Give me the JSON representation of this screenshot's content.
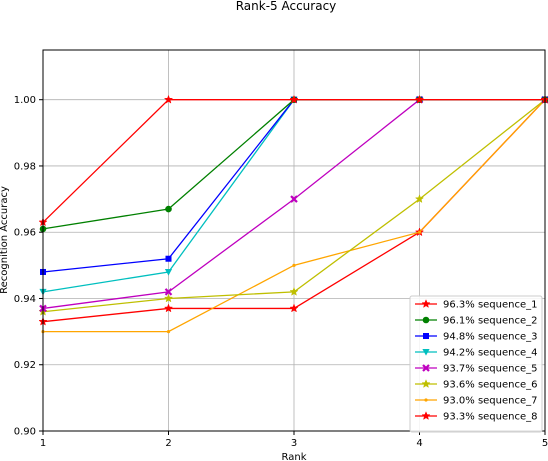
{
  "chart_data": {
    "type": "line",
    "title": "Rank-5 Accuracy",
    "xlabel": "Rank",
    "ylabel": "Recognition Accuracy",
    "xlim": [
      1,
      5
    ],
    "ylim": [
      0.9,
      1.015
    ],
    "xticks": [
      1,
      2,
      3,
      4,
      5
    ],
    "xtick_labels": [
      "1",
      "2",
      "3",
      "4",
      "5"
    ],
    "yticks": [
      0.9,
      0.92,
      0.94,
      0.96,
      0.98,
      1.0
    ],
    "ytick_labels": [
      "0.90",
      "0.92",
      "0.94",
      "0.96",
      "0.98",
      "1.00"
    ],
    "grid": true,
    "legend_position": "lower-right",
    "x": [
      1,
      2,
      3,
      4,
      5
    ],
    "series": [
      {
        "name": "96.3% sequence_1",
        "color": "#ff0000",
        "marker": "star",
        "values": [
          0.963,
          1.0,
          1.0,
          1.0,
          1.0
        ]
      },
      {
        "name": "96.1% sequence_2",
        "color": "#008000",
        "marker": "circle",
        "values": [
          0.961,
          0.967,
          1.0,
          1.0,
          1.0
        ]
      },
      {
        "name": "94.8% sequence_3",
        "color": "#0000ff",
        "marker": "square",
        "values": [
          0.948,
          0.952,
          1.0,
          1.0,
          1.0
        ]
      },
      {
        "name": "94.2% sequence_4",
        "color": "#00bfbf",
        "marker": "triangle-down",
        "values": [
          0.942,
          0.948,
          1.0,
          1.0,
          1.0
        ]
      },
      {
        "name": "93.7% sequence_5",
        "color": "#bf00bf",
        "marker": "x",
        "values": [
          0.937,
          0.942,
          0.97,
          1.0,
          1.0
        ]
      },
      {
        "name": "93.6% sequence_6",
        "color": "#bfbf00",
        "marker": "star",
        "values": [
          0.936,
          0.94,
          0.942,
          0.97,
          1.0
        ]
      },
      {
        "name": "93.0% sequence_7",
        "color": "#ffa500",
        "marker": "point",
        "values": [
          0.93,
          0.93,
          0.95,
          0.96,
          1.0
        ]
      },
      {
        "name": "93.3% sequence_8",
        "color": "#ff0000",
        "marker": "star",
        "values": [
          0.933,
          0.937,
          0.937,
          0.96,
          1.0
        ]
      }
    ]
  }
}
